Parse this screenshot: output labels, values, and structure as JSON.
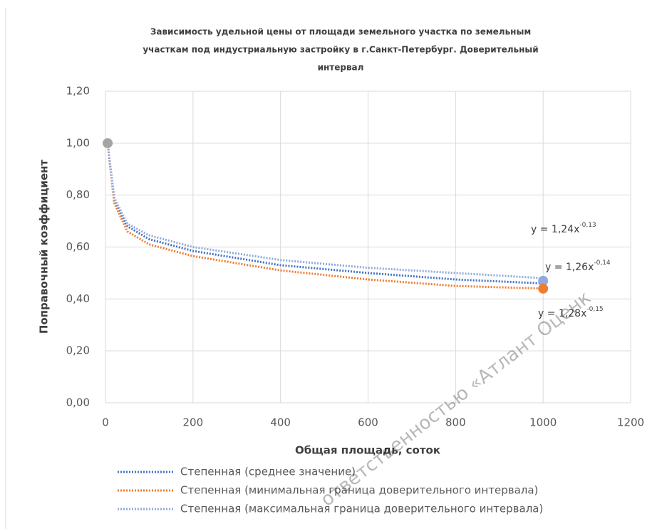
{
  "chart_data": {
    "type": "line",
    "title_lines": [
      "Зависимость удельной цены от площади земельного участка по земельным",
      "участкам под индустриальную застройку в г.Санкт-Петербург. Доверительный",
      "интервал"
    ],
    "x_label": "Общая площадь, соток",
    "y_label": "Поправочный коэффициент",
    "x": [
      5,
      20,
      50,
      100,
      200,
      400,
      600,
      800,
      1000
    ],
    "series": [
      {
        "name": "Степенная (среднее значение)",
        "color": "#4472c4",
        "values": [
          1.0,
          0.78,
          0.68,
          0.63,
          0.585,
          0.53,
          0.5,
          0.475,
          0.46
        ]
      },
      {
        "name": "Степенная (минимальная граница доверительного интервала)",
        "color": "#ed7d31",
        "values": [
          1.0,
          0.77,
          0.66,
          0.61,
          0.565,
          0.51,
          0.475,
          0.45,
          0.44
        ]
      },
      {
        "name": "Степенная (максимальная граница доверительного интервала)",
        "color": "#8faadc",
        "values": [
          1.0,
          0.79,
          0.69,
          0.645,
          0.6,
          0.55,
          0.52,
          0.5,
          0.48
        ]
      }
    ],
    "points": [
      {
        "x": 5,
        "y": 1.0,
        "color": "#a5a5a5"
      },
      {
        "x": 1000,
        "y": 0.47,
        "color": "#8faadc"
      },
      {
        "x": 1000,
        "y": 0.44,
        "color": "#ed7d31"
      }
    ],
    "annotations": [
      {
        "base": "y = 1,24x",
        "exponent": "-0,13"
      },
      {
        "base": "y = 1,26x",
        "exponent": "-0,14"
      },
      {
        "base": "y = 1,28x",
        "exponent": "-0,15"
      }
    ],
    "watermark": "ответственностью «Атлант Оценк",
    "xlim": [
      0,
      1200
    ],
    "xticks": [
      0,
      200,
      400,
      600,
      800,
      1000,
      1200
    ],
    "ylim": [
      0,
      1.2
    ],
    "yticks": [
      {
        "value": 0,
        "label": "0,00"
      },
      {
        "value": 0.2,
        "label": "0,20"
      },
      {
        "value": 0.4,
        "label": "0,40"
      },
      {
        "value": 0.6,
        "label": "0,60"
      },
      {
        "value": 0.8,
        "label": "0,80"
      },
      {
        "value": 1.0,
        "label": "1,00"
      },
      {
        "value": 1.2,
        "label": "1,20"
      }
    ],
    "grid": true
  }
}
